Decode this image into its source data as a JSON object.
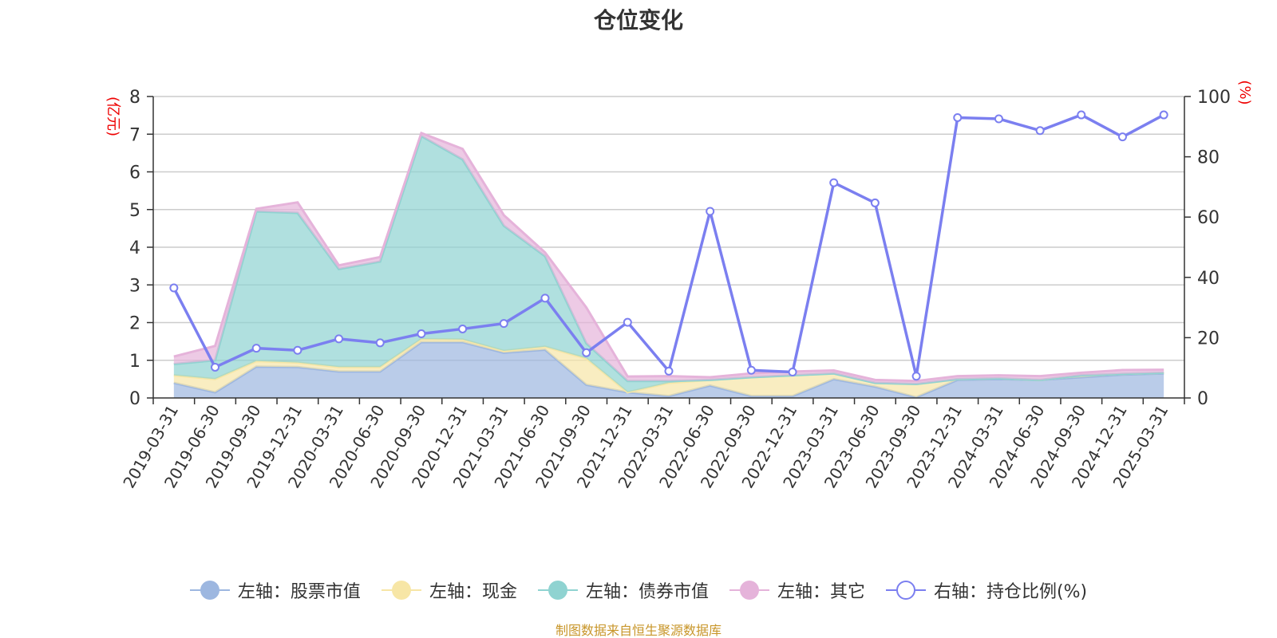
{
  "colors": {
    "stock": "#9db7e0",
    "cash": "#f7e6a6",
    "bond": "#8fd3d1",
    "other": "#e5b3da",
    "ratio": "#7b7ff0",
    "unit": "#ee0000",
    "source": "#c8962a"
  },
  "legend_items": [
    {
      "label": "左轴：股票市值",
      "color": "#9db7e0",
      "style": "filled",
      "icon": "filled-circle-icon"
    },
    {
      "label": "左轴：现金",
      "color": "#f7e6a6",
      "style": "filled",
      "icon": "filled-circle-icon"
    },
    {
      "label": "左轴：债券市值",
      "color": "#8fd3d1",
      "style": "filled",
      "icon": "filled-circle-icon"
    },
    {
      "label": "左轴：其它",
      "color": "#e5b3da",
      "style": "filled",
      "icon": "filled-circle-icon"
    },
    {
      "label": "右轴：持仓比例(%)",
      "color": "#7b7ff0",
      "style": "hollow",
      "icon": "hollow-circle-icon"
    }
  ],
  "source_note": "制图数据来自恒生聚源数据库",
  "chart_data": {
    "type": "area",
    "title": "仓位变化",
    "left_axis": {
      "unit": "(亿元)",
      "ylim": [
        0,
        8
      ],
      "ticks": [
        0,
        1,
        2,
        3,
        4,
        5,
        6,
        7,
        8
      ]
    },
    "right_axis": {
      "unit": "(%)",
      "ylim": [
        0,
        100
      ],
      "ticks": [
        0,
        20,
        40,
        60,
        80,
        100
      ]
    },
    "grid": true,
    "stacked": true,
    "legend_position": "bottom",
    "categories": [
      "2019-03-31",
      "2019-06-30",
      "2019-09-30",
      "2019-12-31",
      "2020-03-31",
      "2020-06-30",
      "2020-09-30",
      "2020-12-31",
      "2021-03-31",
      "2021-06-30",
      "2021-09-30",
      "2021-12-31",
      "2022-03-31",
      "2022-06-30",
      "2022-09-30",
      "2022-12-31",
      "2023-03-31",
      "2023-06-30",
      "2023-09-30",
      "2023-12-31",
      "2024-03-31",
      "2024-06-30",
      "2024-09-30",
      "2024-12-31",
      "2025-03-31"
    ],
    "series": [
      {
        "name": "左轴：股票市值",
        "axis": "left",
        "kind": "area",
        "values": [
          0.4,
          0.15,
          0.83,
          0.82,
          0.7,
          0.7,
          1.48,
          1.48,
          1.2,
          1.28,
          0.35,
          0.15,
          0.05,
          0.33,
          0.05,
          0.05,
          0.5,
          0.3,
          0.02,
          0.48,
          0.5,
          0.48,
          0.55,
          0.62,
          0.65
        ]
      },
      {
        "name": "左轴：现金",
        "axis": "left",
        "kind": "area",
        "values": [
          0.2,
          0.35,
          0.15,
          0.12,
          0.12,
          0.12,
          0.08,
          0.07,
          0.05,
          0.08,
          0.7,
          0.0,
          0.35,
          0.15,
          0.5,
          0.55,
          0.15,
          0.1,
          0.35,
          0.02,
          0.02,
          0.0,
          0.05,
          0.02,
          0.02
        ]
      },
      {
        "name": "左轴：债券市值",
        "axis": "left",
        "kind": "area",
        "values": [
          0.3,
          0.5,
          3.97,
          3.97,
          2.6,
          2.8,
          5.39,
          4.78,
          3.32,
          2.4,
          0.4,
          0.3,
          0.05,
          0.0,
          0.0,
          0.0,
          0.0,
          0.0,
          0.0,
          0.0,
          0.0,
          0.0,
          0.0,
          0.0,
          0.0
        ]
      },
      {
        "name": "左轴：其它",
        "axis": "left",
        "kind": "area",
        "values": [
          0.2,
          0.38,
          0.07,
          0.28,
          0.1,
          0.12,
          0.08,
          0.28,
          0.28,
          0.1,
          0.95,
          0.12,
          0.13,
          0.07,
          0.1,
          0.1,
          0.08,
          0.08,
          0.08,
          0.08,
          0.08,
          0.1,
          0.07,
          0.1,
          0.08
        ]
      },
      {
        "name": "右轴：持仓比例(%)",
        "axis": "right",
        "kind": "line",
        "values": [
          36.5,
          10.2,
          16.5,
          15.8,
          19.6,
          18.3,
          21.3,
          22.9,
          24.7,
          33.1,
          15.0,
          25.1,
          8.9,
          61.9,
          9.2,
          8.6,
          71.4,
          64.7,
          7.2,
          93.0,
          92.6,
          88.7,
          93.9,
          86.6,
          93.9
        ]
      }
    ]
  }
}
